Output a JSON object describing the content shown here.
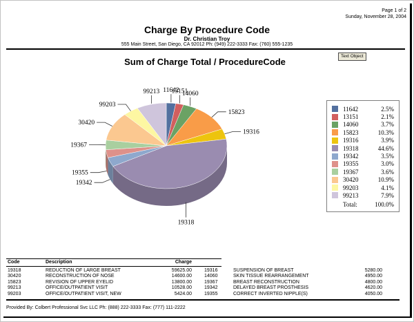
{
  "page": {
    "page_info": "Page 1 of 2",
    "date": "Sunday, November 28, 2004",
    "title": "Charge By Procedure Code",
    "provider": "Dr. Christian Troy",
    "address": "555 Main Street, San Diego, CA 92012 Ph: (949) 222-3333 Fax: (760) 555-1235",
    "text_object_badge": "Text Object",
    "footer": "Provided By: Colbert Professional Svc LLC Ph: (888) 222-3333 Fax: (777) 111-2222"
  },
  "chart_data": {
    "type": "pie",
    "style": "3d",
    "title": "Sum of Charge Total / ProcedureCode",
    "start_angle_deg": 0,
    "direction": "clockwise",
    "legend_position": "right",
    "legend_total_label": "Total:",
    "legend_total_value": "100.0%",
    "slices": [
      {
        "label": "11642",
        "pct": 2.5,
        "pct_label": "2.5%",
        "color": "#53709f"
      },
      {
        "label": "13151",
        "pct": 2.1,
        "pct_label": "2.1%",
        "color": "#d25f5e"
      },
      {
        "label": "14060",
        "pct": 3.7,
        "pct_label": "3.7%",
        "color": "#6ba264"
      },
      {
        "label": "15823",
        "pct": 10.3,
        "pct_label": "10.3%",
        "color": "#f99c48"
      },
      {
        "label": "19316",
        "pct": 3.9,
        "pct_label": "3.9%",
        "color": "#edc40e"
      },
      {
        "label": "19318",
        "pct": 44.6,
        "pct_label": "44.6%",
        "color": "#9a8cb0"
      },
      {
        "label": "19342",
        "pct": 3.5,
        "pct_label": "3.5%",
        "color": "#8ea8cd"
      },
      {
        "label": "19355",
        "pct": 3.0,
        "pct_label": "3.0%",
        "color": "#de918a"
      },
      {
        "label": "19367",
        "pct": 3.6,
        "pct_label": "3.6%",
        "color": "#a9cf9f"
      },
      {
        "label": "30420",
        "pct": 10.9,
        "pct_label": "10.9%",
        "color": "#fbc890"
      },
      {
        "label": "99203",
        "pct": 4.1,
        "pct_label": "4.1%",
        "color": "#fdf7a2"
      },
      {
        "label": "99213",
        "pct": 7.9,
        "pct_label": "7.9%",
        "color": "#cfc5dc"
      }
    ]
  },
  "table": {
    "headers": {
      "code": "Code",
      "description": "Description",
      "charge": "Charge"
    },
    "left_rows": [
      {
        "code": "19318",
        "description": "REDUCTION OF LARGE BREAST",
        "charge": "59625.00"
      },
      {
        "code": "30420",
        "description": "RECONSTRUCTION OF NOSE",
        "charge": "14600.00"
      },
      {
        "code": "15823",
        "description": "REVISION OF UPPER EYELID",
        "charge": "13800.00"
      },
      {
        "code": "99213",
        "description": "OFFICE/OUTPATIENT VISIT",
        "charge": "10528.00"
      },
      {
        "code": "99203",
        "description": "OFFICE/OUTPATIENT VISIT, NEW",
        "charge": "5424.00"
      }
    ],
    "right_rows": [
      {
        "code": "19316",
        "description": "SUSPENSION OF BREAST",
        "charge": "5280.00"
      },
      {
        "code": "14060",
        "description": "SKIN TISSUE REARRANGEMENT",
        "charge": "4950.00"
      },
      {
        "code": "19367",
        "description": "BREAST RECONSTRUCTION",
        "charge": "4800.00"
      },
      {
        "code": "19342",
        "description": "DELAYED BREAST PROSTHESIS",
        "charge": "4620.00"
      },
      {
        "code": "19355",
        "description": "CORRECT INVERTED NIPPLE(S)",
        "charge": "4050.00"
      }
    ]
  }
}
